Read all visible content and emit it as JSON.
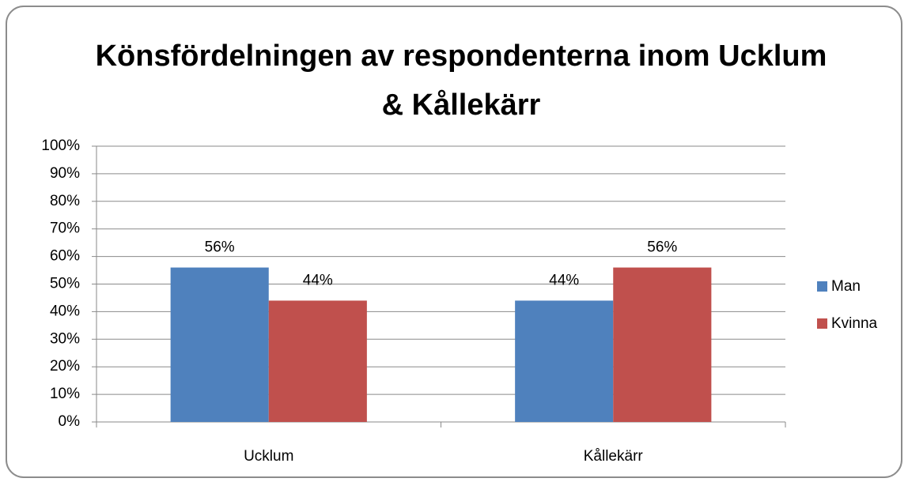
{
  "chart_data": {
    "type": "bar",
    "title": "Könsfördelningen av respondenterna inom Ucklum & Kållekärr",
    "categories": [
      "Ucklum",
      "Kållekärr"
    ],
    "series": [
      {
        "name": "Man",
        "color": "#4f81bd",
        "values": [
          56,
          44
        ],
        "value_labels": [
          "56%",
          "44%"
        ]
      },
      {
        "name": "Kvinna",
        "color": "#c0504d",
        "values": [
          44,
          56
        ],
        "value_labels": [
          "44%",
          "56%"
        ]
      }
    ],
    "ylim": [
      0,
      100
    ],
    "yticks": [
      {
        "value": 0,
        "label": "0%"
      },
      {
        "value": 10,
        "label": "10%"
      },
      {
        "value": 20,
        "label": "20%"
      },
      {
        "value": 30,
        "label": "30%"
      },
      {
        "value": 40,
        "label": "40%"
      },
      {
        "value": 50,
        "label": "50%"
      },
      {
        "value": 60,
        "label": "60%"
      },
      {
        "value": 70,
        "label": "70%"
      },
      {
        "value": 80,
        "label": "80%"
      },
      {
        "value": 90,
        "label": "90%"
      },
      {
        "value": 100,
        "label": "100%"
      }
    ],
    "grid": true,
    "legend": "right"
  }
}
